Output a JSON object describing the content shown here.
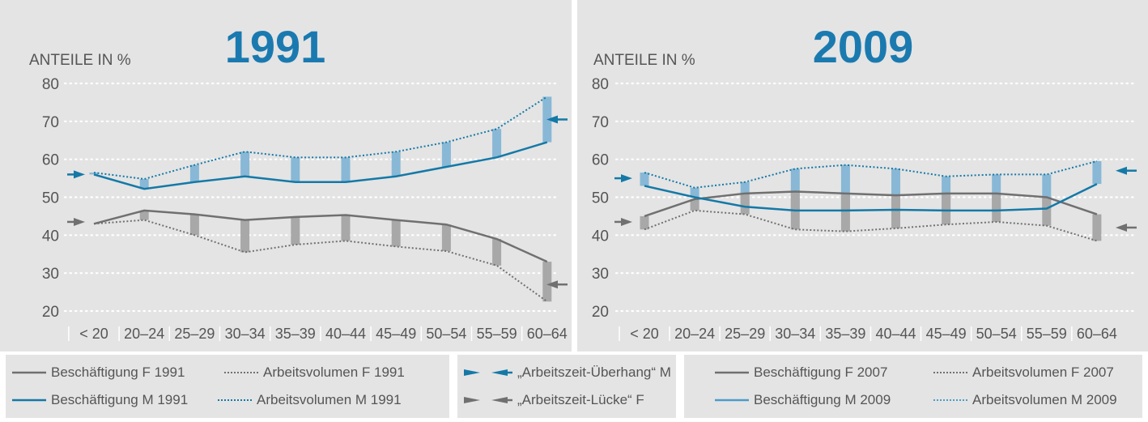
{
  "colors": {
    "employment_f": "#707070",
    "employment_m": "#1479a7",
    "gap_bar_m": "#88b8d6",
    "gap_bar_f": "#a8a8a8",
    "arrow_m": "#1479a7",
    "arrow_f": "#707070",
    "panel_bg": "#e4e4e4",
    "grid": "#ffffff"
  },
  "chart_data": [
    {
      "type": "line",
      "title": "1991",
      "ylabel": "ANTEILE IN %",
      "categories": [
        "< 20",
        "20–24",
        "25–29",
        "30–34",
        "35–39",
        "40–44",
        "45–49",
        "50–54",
        "55–59",
        "60–64"
      ],
      "ylim": [
        20,
        80
      ],
      "yticks": [
        80,
        70,
        60,
        50,
        40,
        30,
        20
      ],
      "grid": true,
      "series": [
        {
          "name": "Beschäftigung F 1991",
          "values": [
            43,
            46.5,
            45.5,
            44,
            44.8,
            45.3,
            44,
            42.8,
            39,
            33
          ]
        },
        {
          "name": "Arbeitsvolumen F 1991",
          "values": [
            43,
            44,
            40,
            35.5,
            37.5,
            38.5,
            37,
            35.8,
            32,
            22.5
          ]
        },
        {
          "name": "Beschäftigung M 1991",
          "values": [
            56,
            52.2,
            54,
            55.5,
            54,
            54,
            55.5,
            58,
            60.5,
            64.5
          ]
        },
        {
          "name": "Arbeitsvolumen M 1991",
          "values": [
            56.5,
            54.8,
            58.5,
            62,
            60.5,
            60.5,
            62,
            64.5,
            68,
            76.5
          ]
        }
      ],
      "arrows": {
        "m_left": 56,
        "m_right": 70.5,
        "f_left": 43.5,
        "f_right": 27
      }
    },
    {
      "type": "line",
      "title": "2009",
      "ylabel": "ANTEILE IN %",
      "categories": [
        "< 20",
        "20–24",
        "25–29",
        "30–34",
        "35–39",
        "40–44",
        "45–49",
        "50–54",
        "55–59",
        "60–64"
      ],
      "ylim": [
        20,
        80
      ],
      "yticks": [
        80,
        70,
        60,
        50,
        40,
        30,
        20
      ],
      "grid": true,
      "series": [
        {
          "name": "Beschäftigung F 2007",
          "values": [
            45,
            49.5,
            51,
            51.5,
            51,
            50.5,
            51,
            51,
            50,
            45.5
          ]
        },
        {
          "name": "Arbeitsvolumen F 2007",
          "values": [
            41.5,
            46.5,
            45.5,
            41.5,
            41,
            41.8,
            42.8,
            43.5,
            42.5,
            38.5
          ]
        },
        {
          "name": "Beschäftigung M 2009",
          "values": [
            53,
            50,
            47.5,
            46.5,
            46.5,
            46.7,
            46.5,
            46.5,
            47,
            53.5
          ]
        },
        {
          "name": "Arbeitsvolumen M 2009",
          "values": [
            56.5,
            52.5,
            54,
            57.5,
            58.5,
            57.5,
            55.5,
            56,
            56,
            59.5
          ]
        }
      ],
      "arrows": {
        "m_left": 55,
        "m_right": 57,
        "f_left": 43.5,
        "f_right": 42
      }
    }
  ],
  "legend": {
    "left": [
      {
        "label": "Beschäftigung F 1991",
        "style": "solid-f"
      },
      {
        "label": "Arbeitsvolumen F 1991",
        "style": "dotted-f"
      },
      {
        "label": "Beschäftigung M 1991",
        "style": "solid-m"
      },
      {
        "label": "Arbeitsvolumen M 1991",
        "style": "dotted-m"
      }
    ],
    "middle": [
      {
        "label": "„Arbeitszeit-Überhang“ M",
        "style": "arrows-m"
      },
      {
        "label": "„Arbeitszeit-Lücke“ F",
        "style": "arrows-f"
      }
    ],
    "right": [
      {
        "label": "Beschäftigung F 2007",
        "style": "solid-f"
      },
      {
        "label": "Arbeitsvolumen F 2007",
        "style": "dotted-f"
      },
      {
        "label": "Beschäftigung M 2009",
        "style": "solid-m"
      },
      {
        "label": "Arbeitsvolumen M 2009",
        "style": "dotted-m"
      }
    ]
  }
}
